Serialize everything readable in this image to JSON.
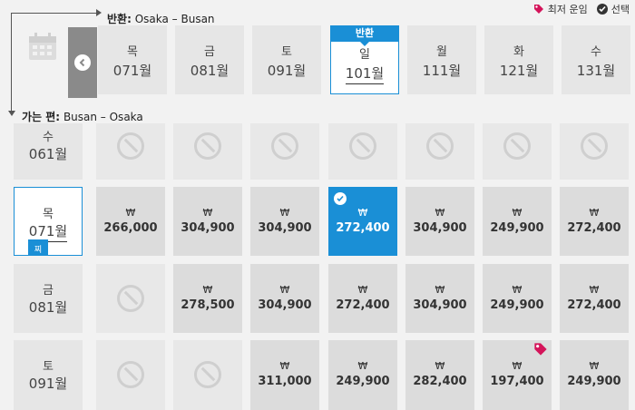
{
  "legend": {
    "lowest_fare": "최저 운임",
    "selected": "선택"
  },
  "return_route": {
    "label": "반환:",
    "route": "Osaka – Busan"
  },
  "outbound_route": {
    "label": "가는 편:",
    "route": "Busan – Osaka"
  },
  "return_badge": "반환",
  "outbound_badge": "찌",
  "currency": "₩",
  "colors": {
    "accent": "#1a8fd6",
    "lowest_tag": "#d4145a"
  },
  "columns": [
    {
      "dow": "목",
      "date": "071월"
    },
    {
      "dow": "금",
      "date": "081월"
    },
    {
      "dow": "토",
      "date": "091월"
    },
    {
      "dow": "일",
      "date": "101월",
      "selected": true
    },
    {
      "dow": "월",
      "date": "111월"
    },
    {
      "dow": "화",
      "date": "121월"
    },
    {
      "dow": "수",
      "date": "131월"
    }
  ],
  "rows": [
    {
      "dow": "수",
      "date": "061월",
      "cells": [
        null,
        null,
        null,
        null,
        null,
        null,
        null
      ]
    },
    {
      "dow": "목",
      "date": "071월",
      "selected": true,
      "cells": [
        "266,000",
        "304,900",
        "304,900",
        "272,400",
        "304,900",
        "249,900",
        "272,400"
      ],
      "selected_cell": 3
    },
    {
      "dow": "금",
      "date": "081월",
      "cells": [
        null,
        "278,500",
        "304,900",
        "272,400",
        "304,900",
        "249,900",
        "272,400"
      ]
    },
    {
      "dow": "토",
      "date": "091월",
      "cells": [
        null,
        null,
        "311,000",
        "249,900",
        "282,400",
        "197,400",
        "249,900"
      ],
      "lowest_cell": 5
    }
  ]
}
